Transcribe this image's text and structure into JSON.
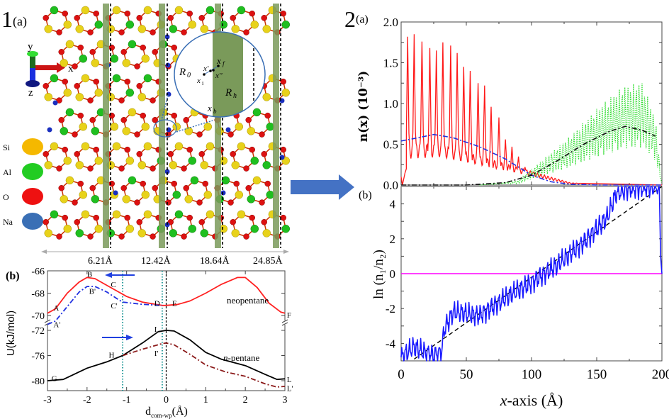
{
  "figure1": {
    "label_num": "1",
    "label_a": "(a)",
    "label_b": "(b)",
    "axes_triad": {
      "y": "y",
      "x": "x",
      "z": "z"
    },
    "legend": [
      {
        "name": "Si",
        "color": "#f5b800"
      },
      {
        "name": "Al",
        "color": "#22cc22"
      },
      {
        "name": "O",
        "color": "#ee1111"
      },
      {
        "name": "Na",
        "color": "#3a6fb5"
      }
    ],
    "distance_labels": [
      "6.21Å",
      "12.42Å",
      "18.64Å",
      "24.85Å"
    ],
    "inset_labels": {
      "r0": "R",
      "r0_sub": "0",
      "rh": "R",
      "rh_sub": "h",
      "xf": "x",
      "xf_sub": "f",
      "xp": "x'",
      "xpp": "x''",
      "xi": "x",
      "xi_sub": "i",
      "xb": "x",
      "xb_sub": "b"
    },
    "colors": {
      "band": "#7a9a5a",
      "si": "#e8d21a",
      "al": "#1fbf1f",
      "o": "#dd1111",
      "na": "#1a2fbf"
    }
  },
  "chart_data": [
    {
      "id": "1b",
      "type": "line",
      "title": "",
      "xlabel": "d",
      "xlabel_sub": "com-wp",
      "xlabel_unit": "(Å)",
      "ylabel": "U(kJ/mol)",
      "xlim": [
        -3,
        3
      ],
      "ylim_upper": [
        -70.5,
        -66
      ],
      "ylim_lower": [
        -81,
        -72
      ],
      "xticks": [
        "-3",
        "-2",
        "-1",
        "0",
        "1",
        "2",
        "3"
      ],
      "yticks_upper": [
        "-66",
        "-68",
        "-70"
      ],
      "yticks_lower": [
        "-72",
        "-76",
        "-80"
      ],
      "annotations": [
        "neopentane",
        "n-pentane"
      ],
      "point_labels": [
        "A",
        "A'",
        "B",
        "B'",
        "C",
        "C'",
        "D",
        "E",
        "F",
        "G",
        "H",
        "I",
        "I'",
        "L",
        "L'"
      ],
      "vlines": [
        -1.1,
        -0.1,
        0
      ],
      "series": [
        {
          "name": "neopentane",
          "color": "#ff2020",
          "style": "solid",
          "x": [
            -3,
            -2.8,
            -2.5,
            -2.2,
            -2.0,
            -1.8,
            -1.5,
            -1.2,
            -1.0,
            -0.6,
            -0.1,
            0,
            0.3,
            0.6,
            1.0,
            1.4,
            1.8,
            2.0,
            2.3,
            2.6,
            2.9,
            3
          ],
          "y": [
            -69.8,
            -69.4,
            -68.0,
            -67.0,
            -66.6,
            -66.7,
            -67.3,
            -67.9,
            -68.3,
            -68.8,
            -69.1,
            -69.1,
            -69.0,
            -68.7,
            -68.0,
            -67.2,
            -66.6,
            -66.6,
            -67.5,
            -68.9,
            -69.7,
            -69.8
          ]
        },
        {
          "name": "neopentane-restricted",
          "color": "#2030e0",
          "style": "dashdot",
          "x": [
            -3,
            -2.8,
            -2.5,
            -2.2,
            -2.0,
            -1.8,
            -1.5,
            -1.2,
            -1.1,
            -0.6,
            -0.1
          ],
          "y": [
            -70.8,
            -70.5,
            -69.2,
            -67.9,
            -67.4,
            -67.4,
            -67.9,
            -68.6,
            -68.8,
            -69.0,
            -69.1
          ]
        },
        {
          "name": "n-pentane",
          "color": "#000000",
          "style": "solid",
          "x": [
            -3,
            -2.6,
            -2.0,
            -1.5,
            -1.1,
            -0.6,
            -0.2,
            0,
            0.2,
            0.6,
            1.0,
            1.4,
            2.0,
            2.5,
            2.8,
            3
          ],
          "y": [
            -80,
            -79.8,
            -78,
            -77,
            -76,
            -74,
            -72.2,
            -72,
            -72.1,
            -73.5,
            -75.5,
            -76.6,
            -77.6,
            -79,
            -79.8,
            -79.7
          ]
        },
        {
          "name": "n-pentane-restricted",
          "color": "#8b1a1a",
          "style": "dashdot",
          "x": [
            -1.1,
            -0.6,
            -0.1,
            0,
            0.2,
            0.6,
            1.0,
            1.5,
            2.0,
            2.5,
            2.8,
            3
          ],
          "y": [
            -76,
            -75,
            -74.1,
            -74.0,
            -74.3,
            -75.8,
            -77.5,
            -78.6,
            -79.3,
            -80.5,
            -81.0,
            -80.9
          ]
        }
      ]
    },
    {
      "id": "2a",
      "type": "line",
      "xlabel": "",
      "ylabel": "n(x) (10⁻³)",
      "xlim": [
        0,
        200
      ],
      "ylim": [
        0,
        2.0
      ],
      "yticks": [
        "0.0",
        "0.5",
        "1.0",
        "1.5",
        "2.0"
      ],
      "series": [
        {
          "name": "species-1",
          "color": "#ff1a1a",
          "style": "solid",
          "peak_x": [
            5,
            10,
            16,
            22,
            27,
            32,
            38,
            43,
            48,
            53,
            59,
            64,
            69,
            75,
            80,
            85,
            90,
            95,
            101
          ],
          "peak_y": [
            1.82,
            1.85,
            1.76,
            1.68,
            1.65,
            1.75,
            1.71,
            1.62,
            1.45,
            1.4,
            1.25,
            1.22,
            0.96,
            0.83,
            0.56,
            0.47,
            0.35,
            0.22,
            0.15
          ]
        },
        {
          "name": "species-2",
          "color": "#33dd33",
          "style": "dotted",
          "envelope_x": [
            90,
            110,
            130,
            150,
            170,
            185,
            195,
            200
          ],
          "envelope_y": [
            0.05,
            0.3,
            0.55,
            0.85,
            1.1,
            1.15,
            0.75,
            0.0
          ]
        },
        {
          "name": "fit-1",
          "color": "#2030e0",
          "style": "dashdot",
          "x": [
            0,
            10,
            25,
            40,
            60,
            80,
            100,
            115,
            130,
            150,
            170,
            200
          ],
          "y": [
            0.54,
            0.57,
            0.62,
            0.58,
            0.47,
            0.32,
            0.12,
            0.04,
            0.01,
            0.0,
            0.0,
            0.0
          ]
        },
        {
          "name": "fit-2",
          "color": "#111111",
          "style": "dashdot",
          "x": [
            0,
            50,
            80,
            100,
            120,
            140,
            160,
            172,
            185,
            195
          ],
          "y": [
            0.0,
            0.0,
            0.03,
            0.12,
            0.3,
            0.5,
            0.66,
            0.72,
            0.67,
            0.6
          ]
        }
      ]
    },
    {
      "id": "2b",
      "type": "line",
      "xlabel": "x-axis (Å)",
      "ylabel": "ln (n₁/n₂)",
      "xlim": [
        0,
        200
      ],
      "ylim": [
        -5,
        5
      ],
      "xticks": [
        "0",
        "50",
        "100",
        "150",
        "200"
      ],
      "yticks": [
        "-4",
        "-2",
        "0",
        "2",
        "4"
      ],
      "series": [
        {
          "name": "ln-ratio",
          "color": "#1a1aff",
          "style": "solid",
          "trend_x": [
            0,
            10,
            18,
            25,
            31,
            33,
            40,
            60,
            80,
            100,
            120,
            140,
            158,
            165,
            175,
            198,
            199,
            200
          ],
          "trend_y": [
            -4.8,
            -4.2,
            -4.5,
            -4.7,
            -4.5,
            -3.2,
            -2.2,
            -2.4,
            -1.4,
            -0.5,
            0.5,
            1.8,
            3.2,
            4.6,
            4.9,
            5.0,
            1.0,
            0.0
          ]
        },
        {
          "name": "linear-fit",
          "color": "#000000",
          "style": "dashed",
          "x": [
            10,
            200
          ],
          "y": [
            -4.9,
            5.0
          ]
        },
        {
          "name": "zero-line",
          "color": "#ff00ff",
          "style": "solid",
          "x": [
            0,
            200
          ],
          "y": [
            0,
            0
          ]
        }
      ]
    }
  ],
  "figure2": {
    "label_num": "2",
    "label_a": "(a)",
    "label_b": "(b)"
  },
  "arrow_color": "#4472c4"
}
